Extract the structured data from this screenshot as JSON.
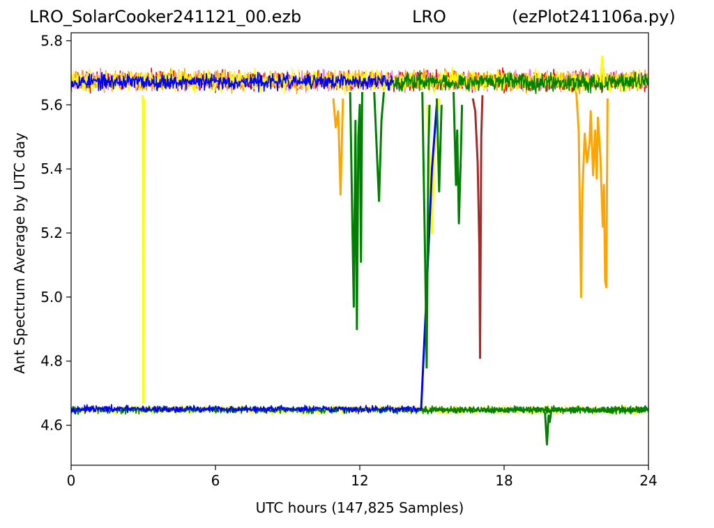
{
  "title": {
    "left": "LRO_SolarCooker241121_00.ezb",
    "center": "LRO",
    "right": "(ezPlot241106a.py)"
  },
  "chart_data": {
    "type": "line",
    "xlabel": "UTC hours  (147,825 Samples)",
    "ylabel": "Ant Spectrum Average by UTC day",
    "xlim": [
      0,
      24
    ],
    "ylim": [
      4.475,
      5.825
    ],
    "xticks": [
      0,
      6,
      12,
      18,
      24
    ],
    "xtick_labels": [
      "0",
      "6",
      "12",
      "18",
      "24"
    ],
    "yticks": [
      4.6,
      4.8,
      5.0,
      5.2,
      5.4,
      5.6,
      5.8
    ],
    "ytick_labels": [
      "4.6",
      "4.8",
      "5.0",
      "5.2",
      "5.4",
      "5.6",
      "5.8"
    ],
    "grid": false,
    "legend": "none",
    "bands": [
      {
        "level": 5.675,
        "spread": 0.03,
        "x_start": 0,
        "x_end": 24,
        "color": "#ff0000",
        "seed": 11
      },
      {
        "level": 5.675,
        "spread": 0.03,
        "x_start": 0,
        "x_end": 24,
        "color": "#ee82ee",
        "seed": 23
      },
      {
        "level": 5.675,
        "spread": 0.032,
        "x_start": 0,
        "x_end": 24,
        "color": "#ffa500",
        "seed": 37
      },
      {
        "level": 5.675,
        "spread": 0.032,
        "x_start": 0,
        "x_end": 24,
        "color": "#ffff00",
        "seed": 41
      },
      {
        "level": 5.672,
        "spread": 0.025,
        "x_start": 0,
        "x_end": 13.4,
        "color": "#0000ff",
        "seed": 53
      },
      {
        "level": 5.672,
        "spread": 0.028,
        "x_start": 13.4,
        "x_end": 24,
        "color": "#008000",
        "seed": 67
      },
      {
        "level": 4.648,
        "spread": 0.012,
        "x_start": 0,
        "x_end": 24,
        "color": "#ffff00",
        "seed": 71
      },
      {
        "level": 4.648,
        "spread": 0.011,
        "x_start": 0,
        "x_end": 24,
        "color": "#008000",
        "seed": 83
      },
      {
        "level": 4.65,
        "spread": 0.011,
        "x_start": 0,
        "x_end": 14.55,
        "color": "#0000ff",
        "seed": 97
      },
      {
        "level": 4.648,
        "spread": 0.011,
        "x_start": 14.55,
        "x_end": 24,
        "color": "#008000",
        "seed": 101
      }
    ],
    "series": [
      {
        "color": "#ffff00",
        "points": [
          [
            2.98,
            5.63
          ],
          [
            3.0,
            4.67
          ],
          [
            3.04,
            5.62
          ]
        ]
      },
      {
        "color": "#ffa500",
        "points": [
          [
            10.9,
            5.62
          ],
          [
            11.0,
            5.53
          ],
          [
            11.1,
            5.58
          ],
          [
            11.2,
            5.32
          ],
          [
            11.3,
            5.62
          ]
        ]
      },
      {
        "color": "#008000",
        "points": [
          [
            11.6,
            5.64
          ],
          [
            11.75,
            4.97
          ],
          [
            11.82,
            5.55
          ],
          [
            11.88,
            4.9
          ],
          [
            11.94,
            5.5
          ],
          [
            12.0,
            5.6
          ],
          [
            12.05,
            5.11
          ],
          [
            12.1,
            5.64
          ]
        ]
      },
      {
        "color": "#008000",
        "points": [
          [
            12.6,
            5.64
          ],
          [
            12.8,
            5.3
          ],
          [
            12.9,
            5.55
          ],
          [
            13.0,
            5.64
          ]
        ]
      },
      {
        "color": "#ffff00",
        "points": [
          [
            14.8,
            5.6
          ],
          [
            15.0,
            5.2
          ],
          [
            15.15,
            5.55
          ],
          [
            15.3,
            5.62
          ]
        ]
      },
      {
        "color": "#0000ff",
        "points": [
          [
            14.55,
            4.65
          ],
          [
            14.75,
            4.97
          ],
          [
            15.0,
            5.4
          ],
          [
            15.1,
            5.5
          ],
          [
            15.2,
            5.6
          ]
        ]
      },
      {
        "color": "#008000",
        "points": [
          [
            14.6,
            5.64
          ],
          [
            14.72,
            5.1
          ],
          [
            14.78,
            4.78
          ],
          [
            14.85,
            5.45
          ],
          [
            14.9,
            5.6
          ]
        ]
      },
      {
        "color": "#008000",
        "points": [
          [
            15.2,
            5.62
          ],
          [
            15.3,
            5.33
          ],
          [
            15.4,
            5.6
          ]
        ]
      },
      {
        "color": "#008000",
        "points": [
          [
            15.9,
            5.64
          ],
          [
            16.0,
            5.35
          ],
          [
            16.05,
            5.52
          ],
          [
            16.12,
            5.23
          ],
          [
            16.2,
            5.44
          ],
          [
            16.25,
            5.6
          ]
        ]
      },
      {
        "color": "#a52a2a",
        "points": [
          [
            16.7,
            5.62
          ],
          [
            16.8,
            5.58
          ],
          [
            16.9,
            5.42
          ],
          [
            16.97,
            5.16
          ],
          [
            17.0,
            4.81
          ],
          [
            17.05,
            5.5
          ],
          [
            17.1,
            5.63
          ]
        ]
      },
      {
        "color": "#ffa500",
        "points": [
          [
            21.0,
            5.64
          ],
          [
            21.1,
            5.52
          ],
          [
            21.2,
            5.0
          ],
          [
            21.25,
            5.32
          ],
          [
            21.35,
            5.51
          ],
          [
            21.45,
            5.42
          ],
          [
            21.55,
            5.48
          ],
          [
            21.6,
            5.58
          ],
          [
            21.7,
            5.38
          ],
          [
            21.78,
            5.52
          ],
          [
            21.85,
            5.37
          ],
          [
            21.9,
            5.56
          ],
          [
            22.0,
            5.44
          ],
          [
            22.1,
            5.22
          ],
          [
            22.15,
            5.35
          ],
          [
            22.2,
            5.05
          ],
          [
            22.25,
            5.03
          ],
          [
            22.3,
            5.62
          ]
        ]
      },
      {
        "color": "#008000",
        "points": [
          [
            19.7,
            4.64
          ],
          [
            19.78,
            4.54
          ],
          [
            19.85,
            4.63
          ],
          [
            19.9,
            4.61
          ],
          [
            19.95,
            4.64
          ]
        ]
      },
      {
        "color": "#ffff00",
        "points": [
          [
            22.0,
            5.67
          ],
          [
            22.08,
            5.75
          ],
          [
            22.15,
            5.66
          ]
        ]
      }
    ]
  }
}
